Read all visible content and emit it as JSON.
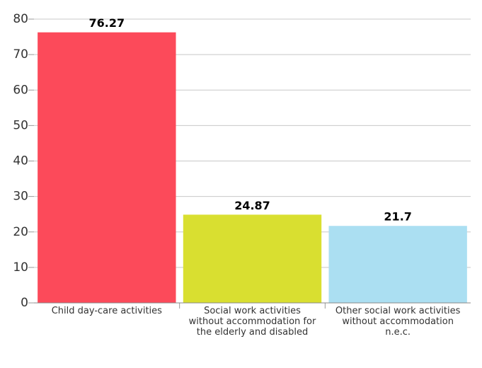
{
  "chart_data": {
    "type": "bar",
    "categories": [
      "Child day-care activities",
      "Social work activities without accommodation for the elderly and disabled",
      "Other social work activities without accommodation n.e.c."
    ],
    "values": [
      76.27,
      24.87,
      21.7
    ],
    "colors": [
      "#fc4a5a",
      "#d9df30",
      "#abdff2"
    ],
    "ylim": [
      0,
      80
    ],
    "yticks": [
      0,
      10,
      20,
      30,
      40,
      50,
      60,
      70,
      80
    ],
    "grid": true
  }
}
